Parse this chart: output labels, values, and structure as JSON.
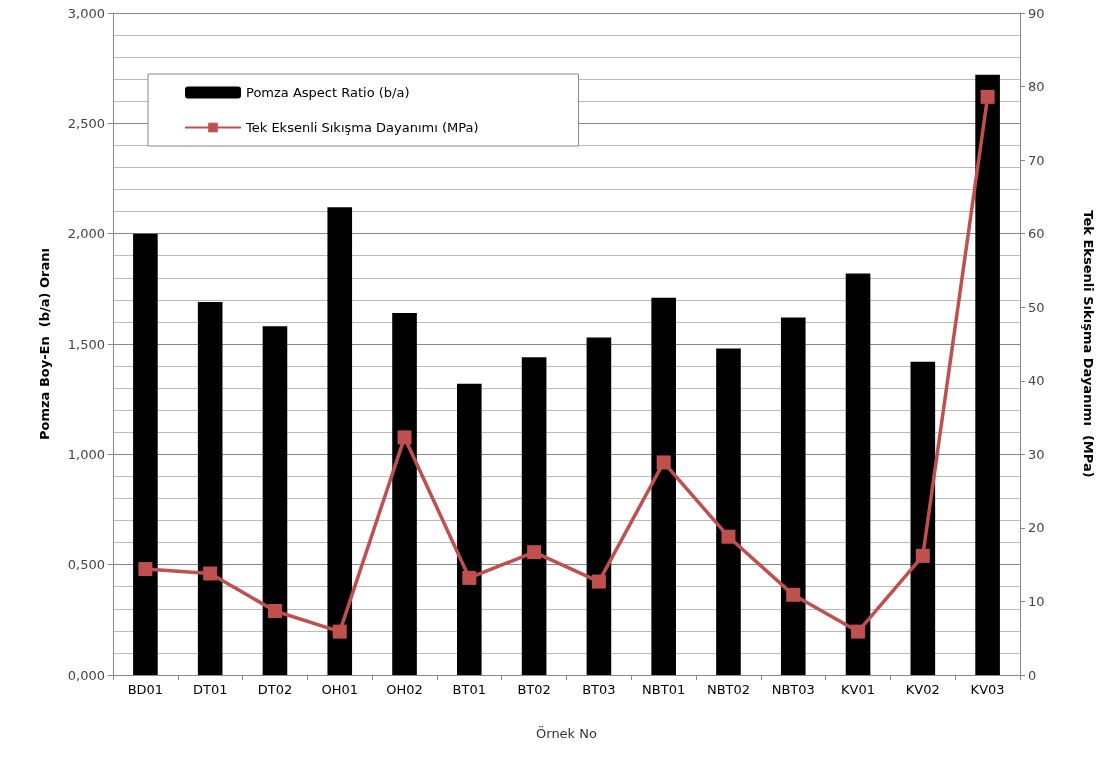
{
  "chart_data": {
    "type": "bar",
    "xlabel": "Örnek No",
    "ylabel": "Pomza Boy-En  (b/a) Oranı",
    "y2label": "Tek Eksenli Sıkışma Dayanımı  (MPa)",
    "categories": [
      "BD01",
      "DT01",
      "DT02",
      "OH01",
      "OH02",
      "BT01",
      "BT02",
      "BT03",
      "NBT01",
      "NBT02",
      "NBT03",
      "KV01",
      "KV02",
      "KV03"
    ],
    "series": [
      {
        "name": "Pomza Aspect Ratio (b/a)",
        "color": "#000000",
        "values": [
          2.0,
          1.69,
          1.58,
          2.12,
          1.64,
          1.32,
          1.44,
          1.53,
          1.71,
          1.48,
          1.62,
          1.82,
          1.42,
          2.72
        ]
      },
      {
        "name": "Tek Eksenli Sıkışma Dayanımı (MPa)",
        "type": "line",
        "axis": "y2",
        "color": "#c0504d",
        "marker": "square",
        "line_style": "solid",
        "values": [
          14.4,
          13.8,
          8.7,
          5.9,
          32.3,
          13.2,
          16.7,
          12.7,
          28.9,
          18.8,
          10.9,
          5.9,
          16.2,
          78.6
        ]
      }
    ],
    "ylim": [
      0,
      3
    ],
    "yticks": [
      {
        "value": 0,
        "label": "0,000"
      },
      {
        "value": 0.5,
        "label": "0,500"
      },
      {
        "value": 1,
        "label": "1,000"
      },
      {
        "value": 1.5,
        "label": "1,500"
      },
      {
        "value": 2,
        "label": "2,000"
      },
      {
        "value": 2.5,
        "label": "2,500"
      },
      {
        "value": 3,
        "label": "3,000"
      }
    ],
    "y2lim": [
      0,
      90
    ],
    "y2ticks": [
      0,
      10,
      20,
      30,
      40,
      50,
      60,
      70,
      80,
      90
    ],
    "grid": "y",
    "legend": "top left"
  }
}
